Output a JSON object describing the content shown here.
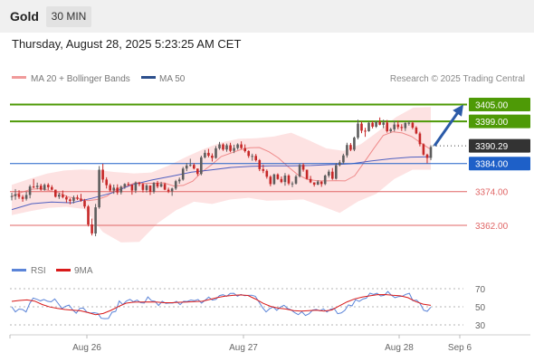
{
  "header": {
    "instrument": "Gold",
    "timeframe": "30 MIN"
  },
  "date_line": "Thursday, August 28, 2025 5:23:25 AM CET",
  "legend": {
    "ma20": "MA 20 + Bollinger Bands",
    "ma50": "MA 50",
    "credit": "Research © 2025 Trading Central"
  },
  "rsi_legend": {
    "rsi": "RSI",
    "ma9": "9MA"
  },
  "colors": {
    "up": "#5d5d5d",
    "down": "#c62828",
    "green": "#4e9a06",
    "blue": "#1e60c8",
    "red": "#e06666",
    "band": "#fde2e2",
    "ma50": "#5060c0"
  },
  "chart_data": [
    {
      "type": "candlestick",
      "instrument": "Gold",
      "timeframe": "30 MIN",
      "x_tick_labels": [
        "Aug 26",
        "Aug 27",
        "Aug 28",
        "Sep 6"
      ],
      "ylim": [
        3352,
        3410
      ],
      "candles": [
        [
          3372.4,
          3373.6,
          3370.9,
          3372.4
        ],
        [
          3372.4,
          3374.9,
          3371.1,
          3373.1
        ],
        [
          3373.1,
          3374.5,
          3371.4,
          3372.1
        ],
        [
          3372.1,
          3372.8,
          3370.4,
          3371.4
        ],
        [
          3371.4,
          3374.0,
          3370.8,
          3372.8
        ],
        [
          3372.8,
          3376.4,
          3371.6,
          3375.8
        ],
        [
          3375.8,
          3378.5,
          3375.2,
          3375.6
        ],
        [
          3375.6,
          3377.2,
          3374.8,
          3376.1
        ],
        [
          3376.1,
          3376.8,
          3374.3,
          3374.7
        ],
        [
          3374.7,
          3376.9,
          3374.3,
          3376.4
        ],
        [
          3376.4,
          3377.0,
          3374.6,
          3375.6
        ],
        [
          3375.6,
          3376.3,
          3374.4,
          3374.7
        ],
        [
          3374.7,
          3374.7,
          3371.9,
          3372.2
        ],
        [
          3372.2,
          3373.6,
          3371.4,
          3372.9
        ],
        [
          3372.9,
          3374.4,
          3371.6,
          3372.0
        ],
        [
          3372.0,
          3372.6,
          3370.1,
          3371.2
        ],
        [
          3371.2,
          3371.6,
          3369.5,
          3370.7
        ],
        [
          3370.7,
          3372.6,
          3369.8,
          3371.9
        ],
        [
          3371.9,
          3372.8,
          3371.0,
          3371.5
        ],
        [
          3371.5,
          3373.2,
          3370.4,
          3370.8
        ],
        [
          3370.8,
          3371.4,
          3368.0,
          3368.7
        ],
        [
          3368.7,
          3369.2,
          3361.6,
          3362.3
        ],
        [
          3362.3,
          3364.4,
          3358.4,
          3359.1
        ],
        [
          3359.1,
          3369.6,
          3358.1,
          3368.4
        ],
        [
          3368.4,
          3383.1,
          3367.9,
          3381.8
        ],
        [
          3381.8,
          3383.9,
          3377.2,
          3378.3
        ],
        [
          3378.3,
          3379.1,
          3375.1,
          3376.3
        ],
        [
          3376.3,
          3376.9,
          3373.9,
          3374.4
        ],
        [
          3374.4,
          3376.5,
          3373.2,
          3375.4
        ],
        [
          3375.4,
          3376.6,
          3372.9,
          3373.7
        ],
        [
          3373.7,
          3376.2,
          3373.0,
          3375.7
        ],
        [
          3375.7,
          3377.0,
          3375.0,
          3376.7
        ],
        [
          3376.7,
          3377.4,
          3376.0,
          3376.5
        ],
        [
          3376.5,
          3376.5,
          3372.9,
          3374.4
        ],
        [
          3374.4,
          3377.6,
          3373.5,
          3377.2
        ],
        [
          3377.2,
          3377.5,
          3375.9,
          3376.7
        ],
        [
          3376.7,
          3377.0,
          3373.7,
          3374.6
        ],
        [
          3374.6,
          3376.7,
          3373.7,
          3376.2
        ],
        [
          3376.2,
          3376.2,
          3372.8,
          3373.9
        ],
        [
          3373.9,
          3377.4,
          3373.3,
          3377.1
        ],
        [
          3377.1,
          3377.8,
          3375.2,
          3375.8
        ],
        [
          3375.8,
          3377.5,
          3375.5,
          3376.7
        ],
        [
          3376.7,
          3377.2,
          3374.5,
          3374.7
        ],
        [
          3374.7,
          3375.4,
          3373.5,
          3374.1
        ],
        [
          3374.1,
          3375.4,
          3372.5,
          3375.1
        ],
        [
          3375.1,
          3378.2,
          3374.6,
          3377.7
        ],
        [
          3377.7,
          3379.0,
          3376.8,
          3378.3
        ],
        [
          3378.3,
          3382.8,
          3377.9,
          3382.2
        ],
        [
          3382.2,
          3384.2,
          3381.3,
          3383.3
        ],
        [
          3383.3,
          3385.7,
          3382.9,
          3383.5
        ],
        [
          3383.5,
          3384.1,
          3381.9,
          3382.2
        ],
        [
          3382.2,
          3382.2,
          3379.6,
          3380.3
        ],
        [
          3380.3,
          3386.8,
          3379.8,
          3386.2
        ],
        [
          3386.2,
          3388.8,
          3385.8,
          3387.8
        ],
        [
          3387.8,
          3389.2,
          3386.2,
          3386.8
        ],
        [
          3386.8,
          3387.6,
          3384.7,
          3386.0
        ],
        [
          3386.0,
          3390.2,
          3385.7,
          3389.4
        ],
        [
          3389.4,
          3391.7,
          3388.9,
          3390.8
        ],
        [
          3390.8,
          3391.2,
          3388.5,
          3389.0
        ],
        [
          3389.0,
          3391.1,
          3388.2,
          3390.5
        ],
        [
          3390.5,
          3391.4,
          3388.0,
          3388.5
        ],
        [
          3388.5,
          3390.7,
          3387.7,
          3389.5
        ],
        [
          3389.5,
          3391.2,
          3388.9,
          3390.8
        ],
        [
          3390.8,
          3391.9,
          3389.1,
          3389.5
        ],
        [
          3389.5,
          3390.8,
          3387.9,
          3388.4
        ],
        [
          3388.4,
          3388.7,
          3386.0,
          3386.7
        ],
        [
          3386.7,
          3387.5,
          3385.0,
          3386.7
        ],
        [
          3386.7,
          3387.4,
          3384.7,
          3385.2
        ],
        [
          3385.2,
          3385.6,
          3381.3,
          3382.0
        ],
        [
          3382.0,
          3383.6,
          3380.6,
          3381.4
        ],
        [
          3381.4,
          3381.9,
          3378.6,
          3379.3
        ],
        [
          3379.3,
          3379.8,
          3375.9,
          3376.7
        ],
        [
          3376.7,
          3380.4,
          3376.4,
          3380.1
        ],
        [
          3380.1,
          3380.5,
          3378.2,
          3378.5
        ],
        [
          3378.5,
          3379.4,
          3377.0,
          3377.4
        ],
        [
          3377.4,
          3380.6,
          3376.1,
          3379.7
        ],
        [
          3379.7,
          3380.2,
          3376.3,
          3376.9
        ],
        [
          3376.9,
          3377.6,
          3375.6,
          3376.9
        ],
        [
          3376.9,
          3380.0,
          3376.5,
          3379.4
        ],
        [
          3379.4,
          3383.9,
          3379.0,
          3383.5
        ],
        [
          3383.5,
          3384.1,
          3381.1,
          3381.8
        ],
        [
          3381.8,
          3381.8,
          3378.3,
          3378.5
        ],
        [
          3378.5,
          3379.6,
          3377.0,
          3377.3
        ],
        [
          3377.3,
          3377.3,
          3375.8,
          3376.5
        ],
        [
          3376.5,
          3378.1,
          3376.3,
          3377.6
        ],
        [
          3377.6,
          3377.7,
          3375.7,
          3376.7
        ],
        [
          3376.7,
          3380.1,
          3376.3,
          3379.7
        ],
        [
          3379.7,
          3381.8,
          3379.0,
          3381.1
        ],
        [
          3381.1,
          3382.4,
          3378.2,
          3378.6
        ],
        [
          3378.6,
          3384.2,
          3378.3,
          3383.4
        ],
        [
          3383.4,
          3385.2,
          3383.0,
          3384.4
        ],
        [
          3384.4,
          3387.5,
          3383.8,
          3386.9
        ],
        [
          3386.9,
          3391.4,
          3386.1,
          3390.6
        ],
        [
          3390.6,
          3391.3,
          3388.4,
          3388.9
        ],
        [
          3388.9,
          3393.6,
          3388.4,
          3393.2
        ],
        [
          3393.2,
          3399.6,
          3392.6,
          3398.2
        ],
        [
          3398.2,
          3398.9,
          3394.8,
          3395.7
        ],
        [
          3395.7,
          3396.7,
          3393.5,
          3395.5
        ],
        [
          3395.5,
          3398.9,
          3395.3,
          3398.5
        ],
        [
          3398.5,
          3399.1,
          3396.5,
          3397.1
        ],
        [
          3397.1,
          3399.1,
          3396.7,
          3398.9
        ],
        [
          3398.9,
          3400.4,
          3397.6,
          3397.8
        ],
        [
          3397.8,
          3399.6,
          3396.6,
          3398.6
        ],
        [
          3398.6,
          3399.5,
          3395.0,
          3395.5
        ],
        [
          3395.5,
          3396.7,
          3395.0,
          3396.2
        ],
        [
          3396.2,
          3399.2,
          3395.4,
          3397.9
        ],
        [
          3397.9,
          3399.2,
          3396.2,
          3397.0
        ],
        [
          3397.0,
          3398.0,
          3395.6,
          3396.6
        ],
        [
          3396.6,
          3398.9,
          3395.6,
          3398.4
        ],
        [
          3398.4,
          3399.2,
          3397.5,
          3398.5
        ],
        [
          3398.5,
          3398.9,
          3396.2,
          3396.8
        ],
        [
          3396.8,
          3397.3,
          3394.4,
          3394.7
        ],
        [
          3394.7,
          3395.3,
          3390.1,
          3390.9
        ],
        [
          3390.9,
          3391.2,
          3386.8,
          3387.2
        ],
        [
          3387.2,
          3387.5,
          3384.1,
          3386.0
        ],
        [
          3386.0,
          3390.5,
          3385.2,
          3389.9
        ]
      ],
      "ma20": [
        3372.3,
        3373.7,
        3374.8,
        3375.1,
        3374.3,
        3373.5,
        3372.0,
        3371.5,
        3370.8,
        3371.2,
        3372.4,
        3374.9,
        3375.9,
        3377.2,
        3376.9,
        3377.0,
        3377.1,
        3376.0,
        3376.2,
        3377.7,
        3381.1,
        3383.6,
        3386.5,
        3387.7,
        3388.9,
        3389.6,
        3389.7,
        3388.2,
        3386.0,
        3382.9,
        3380.1,
        3378.4,
        3377.9,
        3377.8,
        3377.9,
        3377.8,
        3379.6,
        3384.4,
        3389.3,
        3394.0,
        3395.3,
        3394.9,
        3393.6,
        3391.2,
        3389.0
      ],
      "ma50": [
        3367.6,
        3369.7,
        3370.3,
        3370.0,
        3371.6,
        3373.5,
        3376.4,
        3378.1,
        3379.5,
        3380.9,
        3381.7,
        3382.6,
        3383.0,
        3383.2,
        3383.2,
        3383.3,
        3383.6,
        3383.9,
        3384.9,
        3385.7,
        3386.3,
        3386.4
      ],
      "bb_upper": [
        3376.4,
        3378.5,
        3380.4,
        3381.5,
        3381.9,
        3381.6,
        3380.9,
        3380.5,
        3380.8,
        3383.3,
        3386.4,
        3389.2,
        3391.5,
        3392.8,
        3393.0,
        3393.6,
        3395.0,
        3392.3,
        3389.4,
        3388.5,
        3390.9,
        3395.5,
        3400.5,
        3403.9,
        3404.1
      ],
      "bb_lower": [
        3365.6,
        3367.0,
        3368.2,
        3368.6,
        3367.8,
        3359.6,
        3355.9,
        3356.1,
        3362.7,
        3367.3,
        3370.4,
        3369.6,
        3371.2,
        3371.8,
        3370.8,
        3370.9,
        3371.2,
        3368.9,
        3366.4,
        3370.5,
        3373.2,
        3378.5,
        3381.8,
        3381.8
      ],
      "price_lines": [
        {
          "value": 3405.0,
          "label": "3405.00",
          "color": "#4e9a06",
          "kind": "resistance"
        },
        {
          "value": 3399.0,
          "label": "3399.00",
          "color": "#4e9a06",
          "kind": "resistance"
        },
        {
          "value": 3390.29,
          "label": "3390.29",
          "color": "#333333",
          "kind": "last"
        },
        {
          "value": 3384.0,
          "label": "3384.00",
          "color": "#1e60c8",
          "kind": "pivot"
        },
        {
          "value": 3374.0,
          "label": "3374.00",
          "color": "#e06666",
          "kind": "support"
        },
        {
          "value": 3362.0,
          "label": "3362.00",
          "color": "#e06666",
          "kind": "support"
        }
      ],
      "arrow": {
        "from": 3390.29,
        "to": 3405.0,
        "direction": "up"
      }
    },
    {
      "type": "line",
      "name": "RSI",
      "ylim": [
        20,
        80
      ],
      "yticks": [
        70,
        50,
        30
      ],
      "rsi": [
        50.0,
        44.4,
        47.5,
        47.0,
        44.3,
        53.7,
        59.6,
        58.3,
        56.6,
        58.1,
        56.1,
        55.5,
        58.7,
        53.5,
        48.2,
        50.5,
        51.9,
        46.6,
        42.9,
        48.3,
        48.6,
        44.1,
        43.0,
        43.5,
        42.7,
        37.3,
        36.9,
        37.1,
        44.0,
        44.9,
        56.4,
        52.4,
        56.3,
        58.2,
        55.5,
        57.4,
        54.5,
        54.1,
        60.9,
        56.8,
        56.1,
        51.4,
        56.1,
        53.8,
        54.1,
        54.1,
        56.0,
        52.4,
        56.1,
        55.9,
        57.5,
        56.7,
        58.1,
        54.1,
        57.3,
        60.7,
        57.4,
        58.2,
        62.4,
        63.3,
        61.6,
        64.7,
        64.9,
        61.7,
        63.6,
        62.2,
        62.6,
        62.8,
        61.6,
        55.4,
        49.2,
        44.3,
        47.9,
        49.8,
        46.1,
        49.7,
        51.7,
        48.1,
        46.5,
        43.5,
        41.3,
        44.6,
        40.4,
        42.3,
        46.4,
        47.1,
        45.6,
        47.6,
        44.3,
        47.3,
        48.2,
        42.4,
        43.2,
        46.1,
        52.1,
        51.0,
        57.9,
        55.9,
        58.5,
        59.6,
        65.0,
        63.6,
        64.9,
        61.9,
        62.7,
        66.9,
        62.7,
        60.1,
        61.3,
        61.6,
        63.7,
        64.9,
        56.6,
        57.5,
        53.6,
        46.2,
        45.0,
        49.6
      ],
      "ma9": [
        56.0,
        57.0,
        57.6,
        56.3,
        52.5,
        49.8,
        48.3,
        47.0,
        46.3,
        45.6,
        43.6,
        41.3,
        42.6,
        46.0,
        50.3,
        54.0,
        55.1,
        55.3,
        55.4,
        55.2,
        54.5,
        54.5,
        55.0,
        55.3,
        55.8,
        56.1,
        58.1,
        60.2,
        61.7,
        62.6,
        63.1,
        62.5,
        58.5,
        53.8,
        50.4,
        48.5,
        47.5,
        45.7,
        45.2,
        45.7,
        46.2,
        45.3,
        46.5,
        51.1,
        55.4,
        58.7,
        60.7,
        62.1,
        63.4,
        63.5,
        62.7,
        62.1,
        60.1,
        55.8,
        52.9,
        51.6
      ]
    }
  ]
}
